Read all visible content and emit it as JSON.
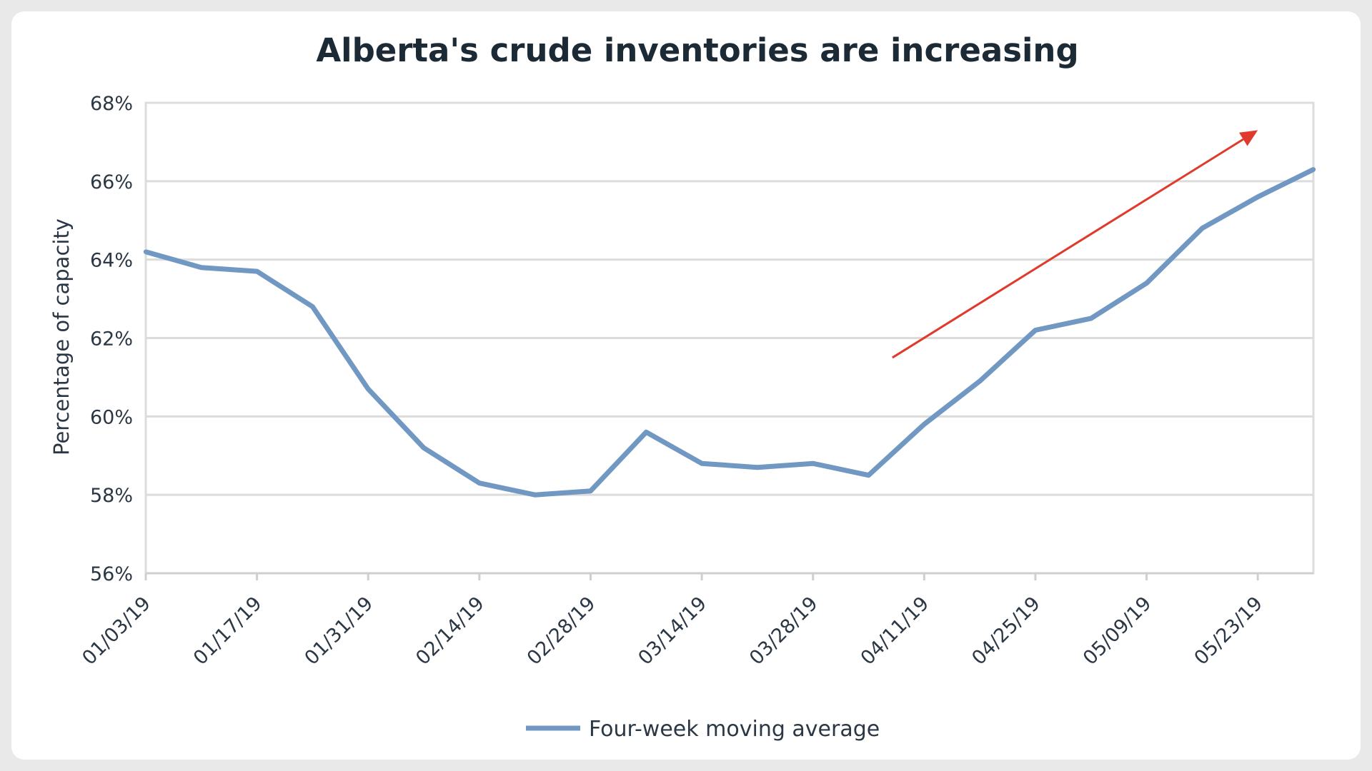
{
  "chart_data": {
    "type": "line",
    "title": "Alberta's crude inventories are increasing",
    "xlabel": "",
    "ylabel": "Percentage of capacity",
    "x": [
      "01/03/19",
      "01/10/19",
      "01/17/19",
      "01/24/19",
      "01/31/19",
      "02/07/19",
      "02/14/19",
      "02/21/19",
      "02/28/19",
      "03/07/19",
      "03/14/19",
      "03/21/19",
      "03/28/19",
      "04/04/19",
      "04/11/19",
      "04/18/19",
      "04/25/19",
      "05/02/19",
      "05/09/19",
      "05/16/19",
      "05/23/19",
      "05/30/19"
    ],
    "x_tick_labels": [
      "01/03/19",
      "01/17/19",
      "01/31/19",
      "02/14/19",
      "02/28/19",
      "03/14/19",
      "03/28/19",
      "04/11/19",
      "04/25/19",
      "05/09/19",
      "05/23/19"
    ],
    "y_tick_labels": [
      "56%",
      "58%",
      "60%",
      "62%",
      "64%",
      "66%",
      "68%"
    ],
    "ylim": [
      56,
      68
    ],
    "grid": "horizontal",
    "legend_position": "bottom-center",
    "series": [
      {
        "name": "Four-week moving average",
        "color": "#7198c2",
        "values": [
          64.2,
          63.8,
          63.7,
          62.8,
          60.7,
          59.2,
          58.3,
          58.0,
          58.1,
          59.6,
          58.8,
          58.7,
          58.8,
          58.5,
          59.8,
          60.9,
          62.2,
          62.5,
          63.4,
          64.8,
          65.6,
          66.3
        ]
      }
    ],
    "annotations": [
      {
        "type": "arrow",
        "color": "#e03a2c",
        "from": {
          "x": "04/07/19",
          "y": 61.5
        },
        "to": {
          "x": "05/23/19",
          "y": 67.3
        }
      }
    ]
  }
}
